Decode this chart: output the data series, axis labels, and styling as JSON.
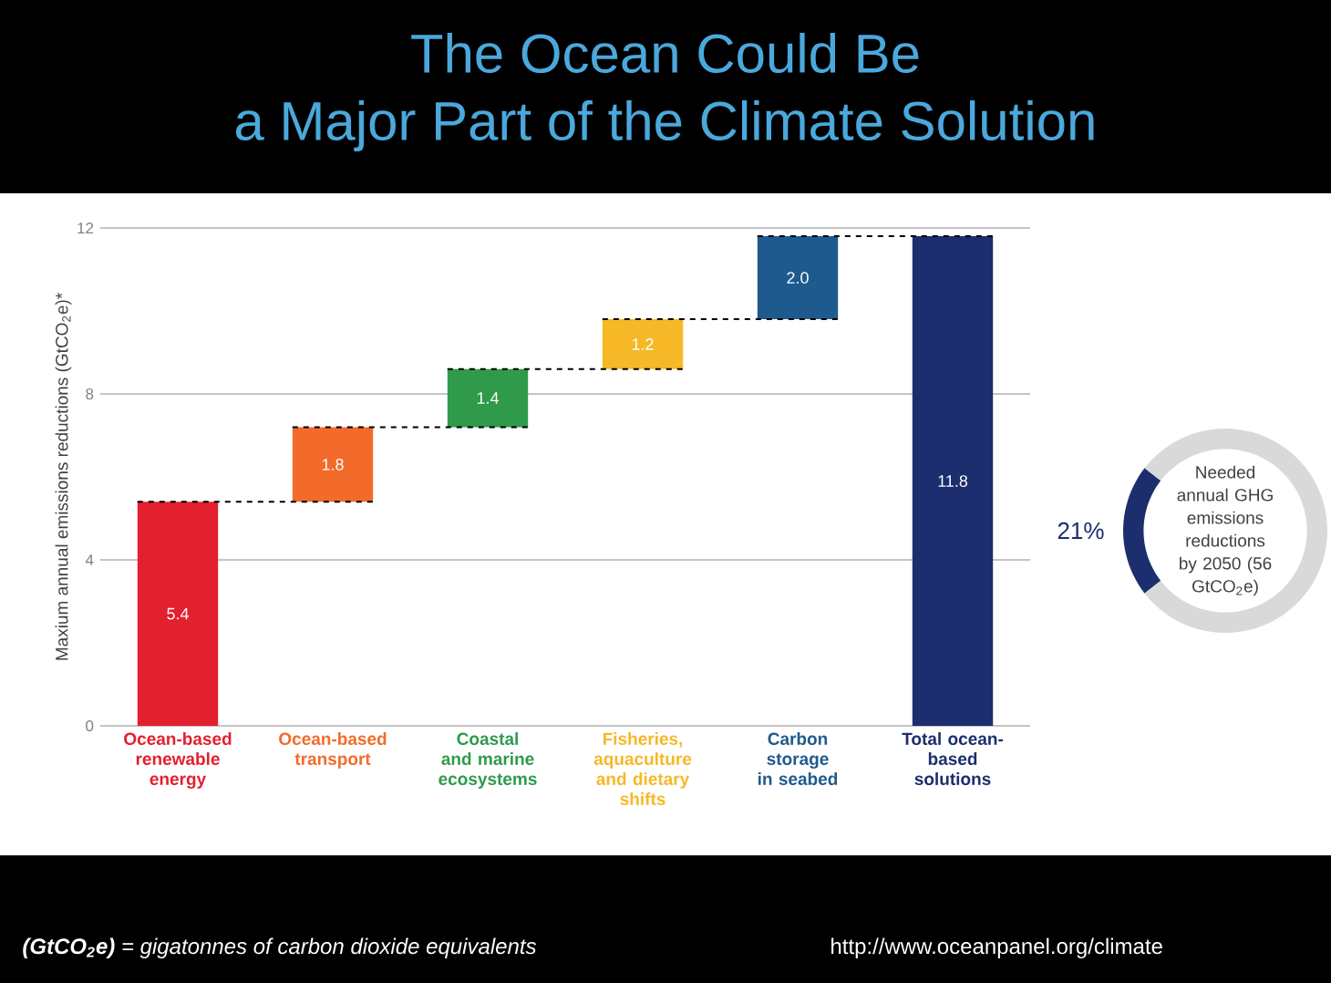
{
  "chart_data": [
    {
      "type": "bar",
      "title": "The Ocean Could Be",
      "subtitle": "a Major Part of the Climate Solution",
      "ylabel": "Maxium annual emissions reductions (GtCO$_{2}$e)*",
      "categories": [
        "Ocean-based renewable energy",
        "Ocean-based transport",
        "Coastal and marine ecosystems",
        "Fisheries, aquaculture and dietary shifts",
        "Carbon storage in seabed",
        "Total ocean-based solutions"
      ],
      "values": [
        5.4,
        1.8,
        1.4,
        1.2,
        2.0,
        11.8
      ],
      "base": [
        0,
        5.4,
        7.2,
        8.6,
        9.8,
        0
      ],
      "colors": [
        "#e3202e",
        "#f26b2b",
        "#2f9a4a",
        "#f6b826",
        "#1f5a8e",
        "#1c2e6e"
      ],
      "value_labels": [
        "5.4",
        "1.8",
        "1.4",
        "1.2",
        "2.0",
        "11.8"
      ],
      "ylim": [
        0,
        12
      ],
      "yticks": [
        0,
        4,
        8,
        12
      ],
      "grid": "y",
      "annotations": [
        "**(GtCO$_{2}$e)** = gigatonnes of carbon dioxide equivalents",
        "http://www.oceanpanel.org/climate"
      ]
    },
    {
      "type": "donut",
      "categories": [
        null,
        null
      ],
      "values": [
        21,
        79
      ],
      "colors": [
        "#1c2e6e",
        "#d9d9d9"
      ],
      "value_labels": [
        "21%",
        null
      ],
      "annotations": [
        "Needed annual GHG emissions reductions by 2050 (56 GtCO$_{2}$e)"
      ]
    }
  ]
}
